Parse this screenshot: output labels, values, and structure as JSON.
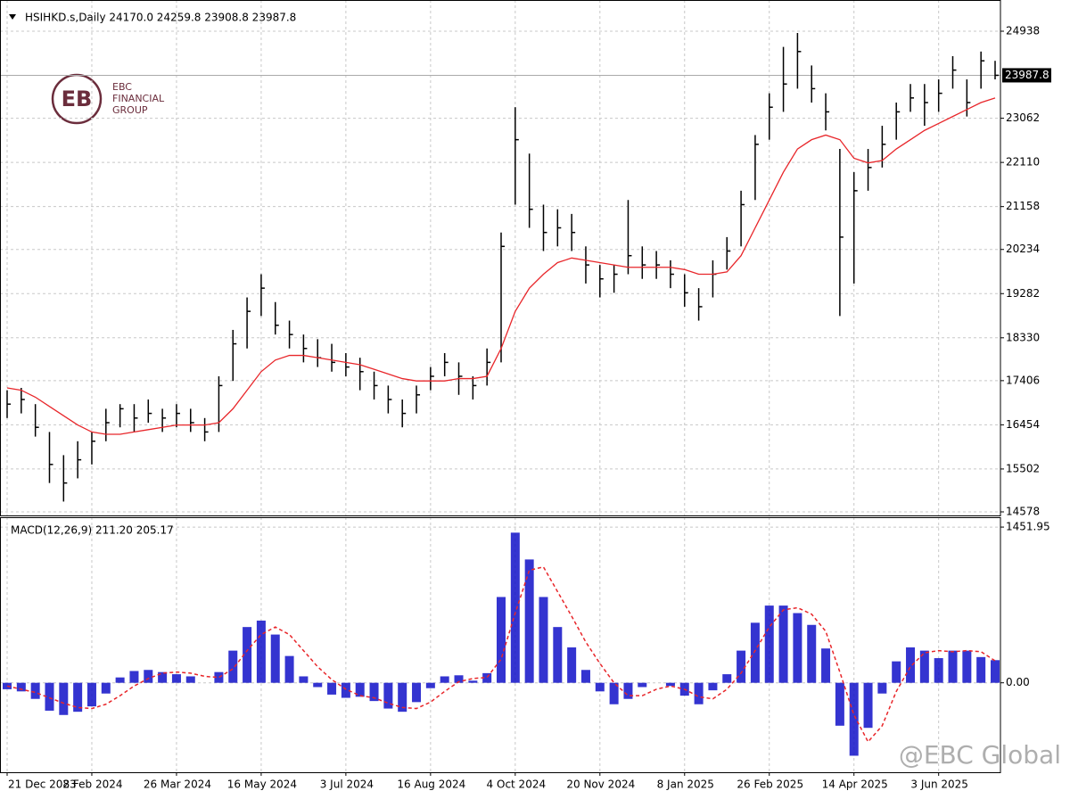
{
  "chart_data": [
    {
      "type": "ohlc",
      "title": "HSIHKD.s,Daily  24170.0 24259.8 23908.8 23987.8",
      "color": "#000000",
      "categories": [
        "21 Dec 2023",
        null,
        null,
        null,
        null,
        null,
        "8 Feb 2024",
        null,
        null,
        null,
        null,
        null,
        "26 Mar 2024",
        null,
        null,
        null,
        null,
        null,
        "16 May 2024",
        null,
        null,
        null,
        null,
        null,
        "3 Jul 2024",
        null,
        null,
        null,
        null,
        null,
        "16 Aug 2024",
        null,
        null,
        null,
        null,
        null,
        "4 Oct 2024",
        null,
        null,
        null,
        null,
        null,
        "20 Nov 2024",
        null,
        null,
        null,
        null,
        null,
        "8 Jan 2025",
        null,
        null,
        null,
        null,
        null,
        "26 Feb 2025",
        null,
        null,
        null,
        null,
        null,
        "14 Apr 2025",
        null,
        null,
        null,
        null,
        null,
        "3 Jun 2025",
        null,
        null,
        null,
        null
      ],
      "high": [
        17200,
        17250,
        16900,
        16300,
        15800,
        16100,
        16300,
        16800,
        16900,
        16900,
        17000,
        16800,
        16900,
        16800,
        16600,
        17500,
        18500,
        19200,
        19700,
        19100,
        18700,
        18400,
        18300,
        18200,
        18000,
        17900,
        17600,
        17300,
        17000,
        17300,
        17700,
        18000,
        17800,
        17500,
        18100,
        20600,
        23300,
        22300,
        21200,
        21100,
        21000,
        20300,
        19900,
        19900,
        21300,
        20300,
        20200,
        20000,
        19700,
        19400,
        20000,
        20500,
        21500,
        22700,
        23600,
        24600,
        24900,
        24200,
        23600,
        22400,
        21900,
        22400,
        22900,
        23400,
        23800,
        23800,
        23900,
        24400,
        23900,
        24500,
        24300
      ],
      "low": [
        16600,
        16700,
        16200,
        15200,
        14800,
        15300,
        15600,
        16100,
        16400,
        16300,
        16500,
        16300,
        16400,
        16300,
        16100,
        16300,
        17400,
        18100,
        18800,
        18400,
        18100,
        17800,
        17700,
        17600,
        17500,
        17200,
        17000,
        16700,
        16400,
        16700,
        17200,
        17500,
        17100,
        17000,
        17300,
        17800,
        21200,
        20700,
        20200,
        20300,
        20200,
        19500,
        19200,
        19300,
        19700,
        19600,
        19600,
        19400,
        19000,
        18700,
        19200,
        19800,
        20300,
        21300,
        22600,
        23200,
        23700,
        23400,
        22800,
        18800,
        19500,
        21500,
        22000,
        22600,
        23200,
        22900,
        23200,
        23700,
        23100,
        23700,
        23900
      ],
      "close": [
        16900,
        17000,
        16400,
        15600,
        15200,
        15700,
        16100,
        16500,
        16800,
        16600,
        16700,
        16600,
        16700,
        16500,
        16300,
        17300,
        18200,
        18900,
        19400,
        18600,
        18400,
        18100,
        17900,
        17800,
        17700,
        17600,
        17300,
        17000,
        16700,
        17100,
        17500,
        17800,
        17500,
        17300,
        17800,
        20300,
        22600,
        21100,
        20600,
        20700,
        20600,
        19900,
        19600,
        19700,
        20100,
        19900,
        19900,
        19700,
        19300,
        19000,
        19700,
        20200,
        21200,
        22500,
        23300,
        23800,
        24500,
        23700,
        23200,
        20500,
        21500,
        22000,
        22500,
        23200,
        23500,
        23400,
        23600,
        24100,
        23400,
        24300,
        23987.8
      ],
      "ma": {
        "color": "#e8262a",
        "values": [
          17250,
          17200,
          17050,
          16850,
          16650,
          16450,
          16300,
          16250,
          16250,
          16300,
          16350,
          16400,
          16450,
          16450,
          16450,
          16500,
          16800,
          17200,
          17600,
          17850,
          17950,
          17950,
          17900,
          17850,
          17800,
          17750,
          17650,
          17550,
          17450,
          17400,
          17400,
          17400,
          17450,
          17450,
          17500,
          18100,
          18900,
          19400,
          19700,
          19950,
          20050,
          20000,
          19950,
          19900,
          19850,
          19850,
          19850,
          19850,
          19800,
          19700,
          19700,
          19750,
          20100,
          20700,
          21300,
          21900,
          22400,
          22600,
          22700,
          22600,
          22200,
          22100,
          22150,
          22400,
          22600,
          22800,
          22950,
          23100,
          23250,
          23400,
          23500
        ]
      },
      "last_price": 23987.8,
      "ylim": [
        14501,
        25611
      ],
      "yticks": [
        14578,
        15502,
        16454,
        17406,
        18330,
        19282,
        20234,
        21158,
        22110,
        23062,
        24938
      ],
      "grid": true,
      "logo": [
        "EBC",
        "FINANCIAL",
        "GROUP"
      ],
      "watermark": "@EBC Global"
    },
    {
      "type": "macd",
      "title": "MACD(12,26,9) 211.20 205.17",
      "histogram": {
        "color": "#1010c8",
        "values": [
          -60,
          -80,
          -150,
          -260,
          -300,
          -270,
          -220,
          -100,
          50,
          110,
          120,
          100,
          80,
          60,
          0,
          100,
          300,
          520,
          580,
          450,
          250,
          60,
          -40,
          -110,
          -140,
          -130,
          -170,
          -240,
          -270,
          -180,
          -50,
          60,
          70,
          20,
          90,
          800,
          1400,
          1150,
          800,
          520,
          330,
          120,
          -80,
          -200,
          -150,
          -40,
          0,
          -30,
          -120,
          -200,
          -70,
          80,
          300,
          560,
          720,
          720,
          650,
          540,
          320,
          -400,
          -680,
          -420,
          -100,
          200,
          330,
          300,
          230,
          300,
          300,
          240,
          211.2
        ]
      },
      "signal": {
        "color": "#e8262a",
        "values": [
          -30,
          -60,
          -90,
          -140,
          -190,
          -230,
          -240,
          -200,
          -120,
          -30,
          40,
          90,
          100,
          90,
          60,
          50,
          130,
          300,
          450,
          520,
          450,
          300,
          150,
          30,
          -60,
          -120,
          -140,
          -190,
          -230,
          -240,
          -180,
          -80,
          10,
          40,
          50,
          220,
          650,
          1050,
          1080,
          850,
          620,
          380,
          180,
          0,
          -120,
          -120,
          -60,
          -30,
          -60,
          -130,
          -150,
          -60,
          90,
          300,
          520,
          680,
          700,
          640,
          480,
          100,
          -300,
          -550,
          -400,
          -80,
          150,
          280,
          300,
          290,
          300,
          290,
          205.17
        ]
      },
      "ylim": [
        -834,
        1544
      ],
      "yticks": [
        {
          "value": 0,
          "label": "0.00"
        },
        1451.95
      ]
    }
  ]
}
